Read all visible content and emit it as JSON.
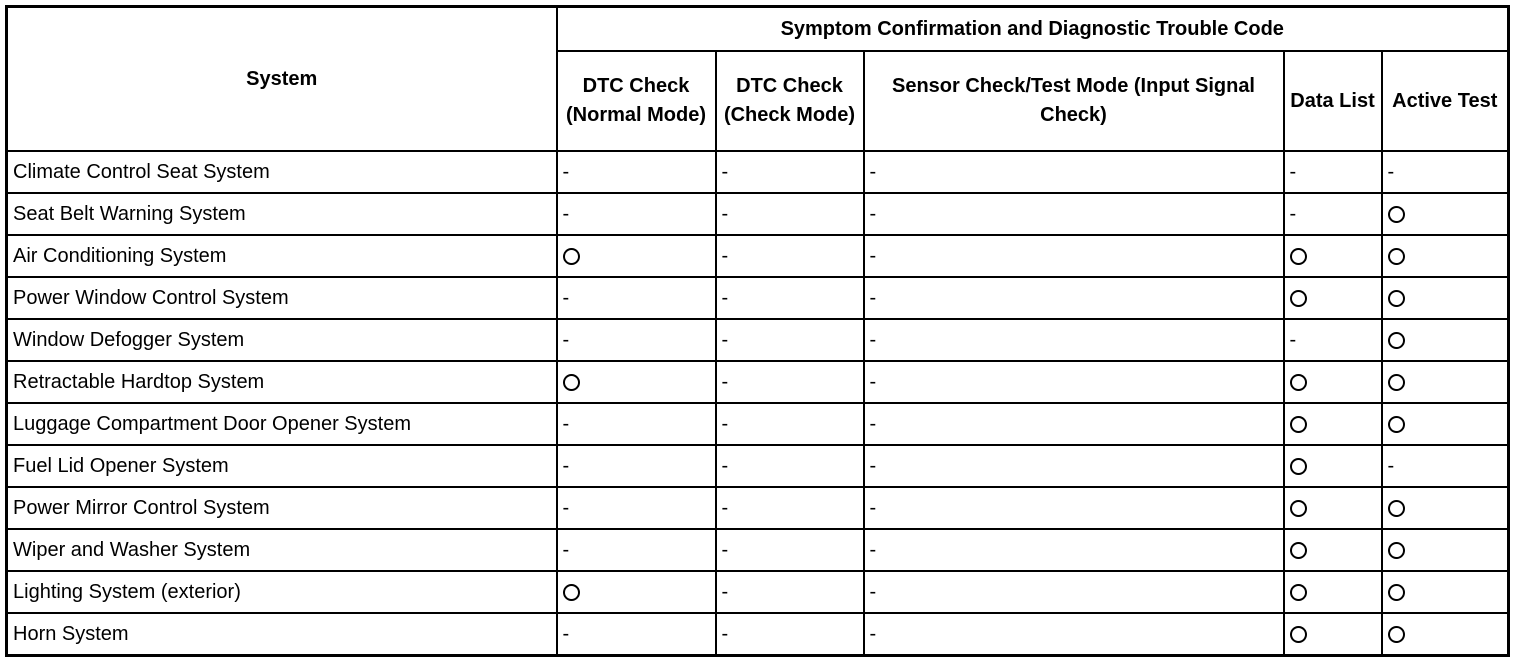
{
  "header": {
    "system": "System",
    "group": "Symptom Confirmation and Diagnostic Trouble Code",
    "columns": [
      "DTC Check (Normal Mode)",
      "DTC Check (Check Mode)",
      "Sensor Check/Test Mode (Input Signal Check)",
      "Data List",
      "Active Test"
    ]
  },
  "legend": {
    "circle": "○",
    "dash": "-"
  },
  "rows": [
    {
      "system": "Climate Control Seat System",
      "values": [
        "-",
        "-",
        "-",
        "-",
        "-"
      ]
    },
    {
      "system": "Seat Belt Warning System",
      "values": [
        "-",
        "-",
        "-",
        "-",
        "○"
      ]
    },
    {
      "system": "Air Conditioning System",
      "values": [
        "○",
        "-",
        "-",
        "○",
        "○"
      ]
    },
    {
      "system": "Power Window Control System",
      "values": [
        "-",
        "-",
        "-",
        "○",
        "○"
      ]
    },
    {
      "system": "Window Defogger System",
      "values": [
        "-",
        "-",
        "-",
        "-",
        "○"
      ]
    },
    {
      "system": "Retractable Hardtop System",
      "values": [
        "○",
        "-",
        "-",
        "○",
        "○"
      ]
    },
    {
      "system": "Luggage Compartment Door Opener System",
      "values": [
        "-",
        "-",
        "-",
        "○",
        "○"
      ]
    },
    {
      "system": "Fuel Lid Opener System",
      "values": [
        "-",
        "-",
        "-",
        "○",
        "-"
      ]
    },
    {
      "system": "Power Mirror Control System",
      "values": [
        "-",
        "-",
        "-",
        "○",
        "○"
      ]
    },
    {
      "system": "Wiper and Washer System",
      "values": [
        "-",
        "-",
        "-",
        "○",
        "○"
      ]
    },
    {
      "system": "Lighting System (exterior)",
      "values": [
        "○",
        "-",
        "-",
        "○",
        "○"
      ]
    },
    {
      "system": "Horn System",
      "values": [
        "-",
        "-",
        "-",
        "○",
        "○"
      ]
    }
  ]
}
